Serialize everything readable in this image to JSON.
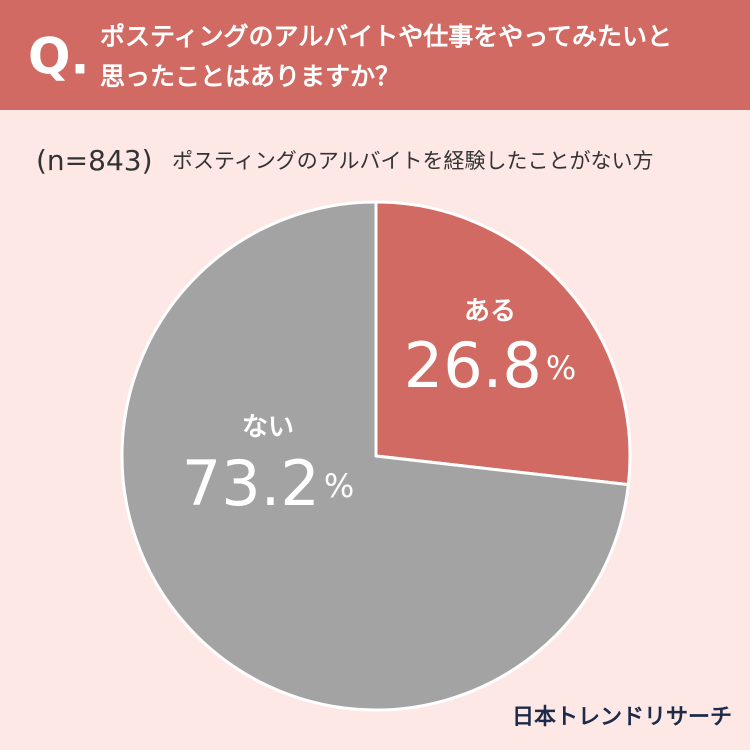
{
  "question_mark": "Q.",
  "chart_data": {
    "type": "pie",
    "title_lines": [
      "ポスティングのアルバイトや仕事をやってみたいと",
      "思ったことはありますか？"
    ],
    "sample": "(n=843)",
    "subtitle": "ポスティングのアルバイトを経験したことがない方",
    "categories": [
      "ある",
      "ない"
    ],
    "values": [
      26.8,
      73.2
    ],
    "value_labels": [
      "26.8%",
      "73.2%"
    ],
    "colors": [
      "#d06a62",
      "#a3a3a3"
    ]
  },
  "brand": "日本トレンドリサーチ"
}
